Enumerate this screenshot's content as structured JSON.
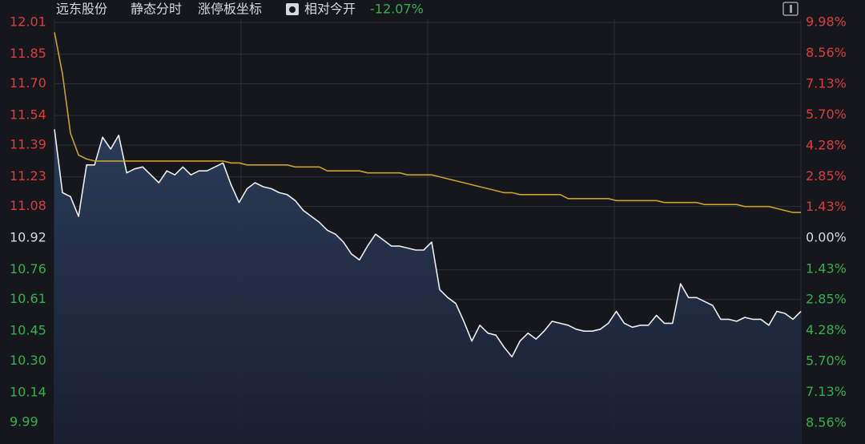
{
  "chart_data": {
    "type": "line",
    "title": "远东股份",
    "annotations": [
      "静态分时",
      "涨停板坐标",
      "相对今开",
      "-12.07%"
    ],
    "ylim": [
      9.88,
      12.01
    ],
    "yticks": [
      12.01,
      11.85,
      {
        "value": 11.7,
        "label": "11.70"
      },
      11.54,
      11.39,
      11.23,
      11.08,
      10.92,
      10.76,
      10.61,
      10.45,
      {
        "value": 10.3,
        "label": "10.30"
      },
      10.14,
      9.99
    ],
    "y2lim": [
      -9.52,
      9.98
    ],
    "y2ticks": [
      {
        "value": 9.98,
        "label": "9.98%"
      },
      {
        "value": 8.56,
        "label": "8.56%"
      },
      {
        "value": 7.13,
        "label": "7.13%"
      },
      {
        "value": 5.7,
        "label": "5.70%"
      },
      {
        "value": 4.28,
        "label": "4.28%"
      },
      {
        "value": 2.85,
        "label": "2.85%"
      },
      {
        "value": 1.43,
        "label": "1.43%"
      },
      {
        "value": 0,
        "label": "0.00%"
      },
      {
        "value": -1.43,
        "label": "1.43%"
      },
      {
        "value": -2.85,
        "label": "2.85%"
      },
      {
        "value": -4.28,
        "label": "4.28%"
      },
      {
        "value": -5.7,
        "label": "5.70%"
      },
      {
        "value": -7.13,
        "label": "7.13%"
      },
      {
        "value": -8.56,
        "label": "8.56%"
      }
    ],
    "grid": true,
    "series": [
      {
        "color": "#eeeeee",
        "fill": true,
        "values": [
          11.47,
          11.15,
          11.13,
          11.03,
          11.29,
          11.29,
          11.43,
          11.37,
          11.44,
          11.25,
          11.27,
          11.28,
          11.24,
          11.2,
          11.26,
          11.24,
          11.28,
          11.24,
          11.26,
          11.26,
          11.28,
          11.3,
          11.19,
          11.1,
          11.17,
          11.2,
          11.18,
          11.17,
          11.15,
          11.14,
          11.11,
          11.06,
          11.03,
          11.0,
          10.96,
          10.94,
          10.9,
          10.84,
          10.81,
          10.88,
          10.94,
          10.91,
          10.88,
          10.88,
          10.87,
          10.86,
          10.86,
          10.9,
          10.66,
          10.62,
          10.59,
          10.5,
          10.4,
          10.48,
          10.44,
          10.43,
          10.37,
          10.32,
          10.4,
          10.44,
          10.41,
          10.45,
          10.5,
          10.49,
          10.48,
          10.46,
          10.45,
          10.45,
          10.46,
          10.49,
          10.55,
          10.49,
          10.47,
          10.48,
          10.48,
          10.53,
          10.49,
          10.49,
          10.69,
          10.62,
          10.62,
          10.6,
          10.58,
          10.51,
          10.51,
          10.5,
          10.52,
          10.51,
          10.51,
          10.48,
          10.55,
          10.54,
          10.51,
          10.55
        ]
      },
      {
        "color": "#c9a227",
        "fill": false,
        "values": [
          11.96,
          11.75,
          11.45,
          11.34,
          11.32,
          11.31,
          11.31,
          11.31,
          11.31,
          11.31,
          11.31,
          11.31,
          11.31,
          11.31,
          11.31,
          11.31,
          11.31,
          11.31,
          11.31,
          11.31,
          11.31,
          11.31,
          11.3,
          11.3,
          11.29,
          11.29,
          11.29,
          11.29,
          11.29,
          11.29,
          11.28,
          11.28,
          11.28,
          11.28,
          11.26,
          11.26,
          11.26,
          11.26,
          11.26,
          11.25,
          11.25,
          11.25,
          11.25,
          11.25,
          11.24,
          11.24,
          11.24,
          11.24,
          11.23,
          11.22,
          11.21,
          11.2,
          11.19,
          11.18,
          11.17,
          11.16,
          11.15,
          11.15,
          11.14,
          11.14,
          11.14,
          11.14,
          11.14,
          11.14,
          11.12,
          11.12,
          11.12,
          11.12,
          11.12,
          11.12,
          11.11,
          11.11,
          11.11,
          11.11,
          11.11,
          11.11,
          11.1,
          11.1,
          11.1,
          11.1,
          11.1,
          11.09,
          11.09,
          11.09,
          11.09,
          11.09,
          11.08,
          11.08,
          11.08,
          11.08,
          11.07,
          11.06,
          11.05,
          11.05
        ]
      }
    ]
  }
}
